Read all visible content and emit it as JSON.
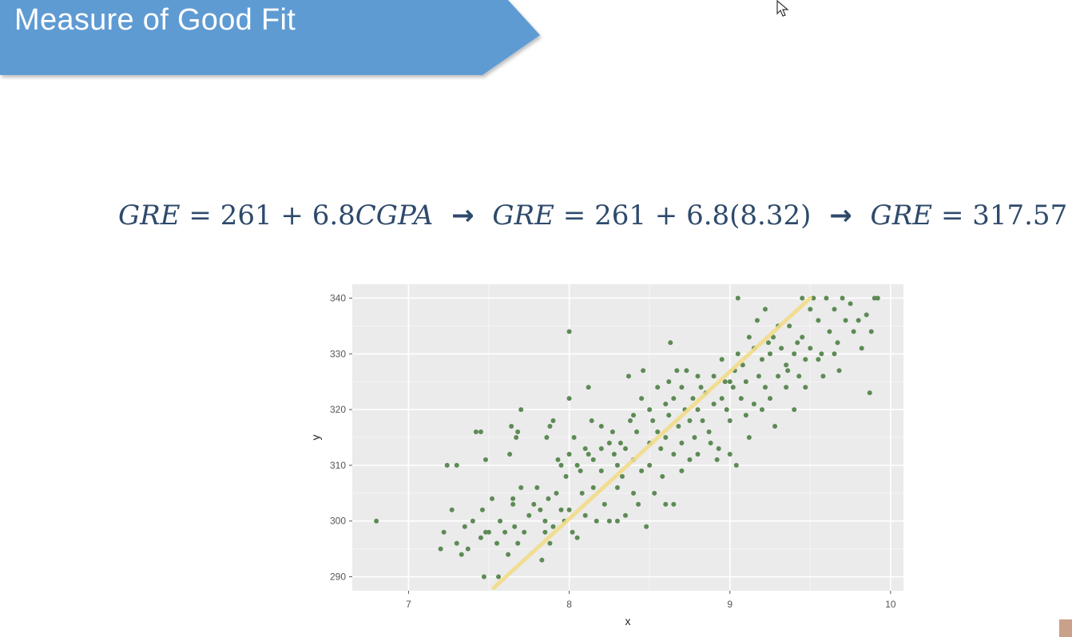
{
  "slide": {
    "title": "Measure of Good Fit",
    "banner_color": "#5f9bd3"
  },
  "equation": {
    "part1_lhs": "GRE",
    "part1_rhs_a": "= 261 + 6.8",
    "part1_rhs_var": "CGPA",
    "arrow": "→",
    "part2_lhs": "GRE",
    "part2_rhs": "= 261 + 6.8(8.32)",
    "part3_lhs": "GRE",
    "part3_rhs": "= 317.57"
  },
  "chart_data": {
    "type": "scatter",
    "xlabel": "x",
    "ylabel": "y",
    "xlim": [
      6.65,
      10.08
    ],
    "ylim": [
      287.5,
      342.5
    ],
    "x_ticks": [
      7,
      8,
      9,
      10
    ],
    "y_ticks": [
      290,
      300,
      310,
      320,
      330,
      340
    ],
    "grid": true,
    "point_color": "#5d8a55",
    "fit_line": {
      "color": "#f2dc8a",
      "x": [
        7.53,
        9.5
      ],
      "y": [
        288,
        340
      ]
    },
    "points": [
      [
        6.8,
        300
      ],
      [
        7.2,
        295
      ],
      [
        7.22,
        298
      ],
      [
        7.24,
        310
      ],
      [
        7.27,
        302
      ],
      [
        7.3,
        296
      ],
      [
        7.3,
        310
      ],
      [
        7.33,
        294
      ],
      [
        7.35,
        299
      ],
      [
        7.37,
        295
      ],
      [
        7.4,
        300
      ],
      [
        7.42,
        316
      ],
      [
        7.45,
        316
      ],
      [
        7.45,
        297
      ],
      [
        7.46,
        302
      ],
      [
        7.48,
        298
      ],
      [
        7.48,
        311
      ],
      [
        7.47,
        290
      ],
      [
        7.5,
        298
      ],
      [
        7.52,
        304
      ],
      [
        7.55,
        296
      ],
      [
        7.56,
        290
      ],
      [
        7.57,
        300
      ],
      [
        7.6,
        298
      ],
      [
        7.62,
        294
      ],
      [
        7.63,
        312
      ],
      [
        7.64,
        317
      ],
      [
        7.65,
        304
      ],
      [
        7.65,
        303
      ],
      [
        7.66,
        299
      ],
      [
        7.67,
        315
      ],
      [
        7.68,
        316
      ],
      [
        7.68,
        296
      ],
      [
        7.7,
        320
      ],
      [
        7.7,
        306
      ],
      [
        7.72,
        298
      ],
      [
        7.75,
        301
      ],
      [
        7.78,
        303
      ],
      [
        7.8,
        306
      ],
      [
        7.82,
        302
      ],
      [
        7.83,
        293
      ],
      [
        7.85,
        300
      ],
      [
        7.85,
        298
      ],
      [
        7.86,
        315
      ],
      [
        7.87,
        304
      ],
      [
        7.88,
        317
      ],
      [
        7.88,
        296
      ],
      [
        7.9,
        318
      ],
      [
        7.9,
        299
      ],
      [
        7.92,
        305
      ],
      [
        7.93,
        311
      ],
      [
        7.95,
        310
      ],
      [
        7.95,
        302
      ],
      [
        7.97,
        300
      ],
      [
        7.98,
        308
      ],
      [
        8.0,
        322
      ],
      [
        8.0,
        312
      ],
      [
        8.0,
        302
      ],
      [
        8.0,
        334
      ],
      [
        8.02,
        298
      ],
      [
        8.03,
        315
      ],
      [
        8.05,
        310
      ],
      [
        8.05,
        297
      ],
      [
        8.07,
        309
      ],
      [
        8.08,
        305
      ],
      [
        8.1,
        313
      ],
      [
        8.1,
        301
      ],
      [
        8.12,
        312
      ],
      [
        8.12,
        324
      ],
      [
        8.14,
        318
      ],
      [
        8.15,
        311
      ],
      [
        8.15,
        306
      ],
      [
        8.17,
        300
      ],
      [
        8.2,
        317
      ],
      [
        8.2,
        313
      ],
      [
        8.2,
        309
      ],
      [
        8.22,
        303
      ],
      [
        8.25,
        314
      ],
      [
        8.25,
        300
      ],
      [
        8.27,
        316
      ],
      [
        8.28,
        312
      ],
      [
        8.3,
        310
      ],
      [
        8.3,
        306
      ],
      [
        8.3,
        300
      ],
      [
        8.32,
        314
      ],
      [
        8.33,
        308
      ],
      [
        8.35,
        313
      ],
      [
        8.35,
        301
      ],
      [
        8.37,
        326
      ],
      [
        8.38,
        318
      ],
      [
        8.4,
        319
      ],
      [
        8.4,
        311
      ],
      [
        8.4,
        305
      ],
      [
        8.42,
        316
      ],
      [
        8.43,
        303
      ],
      [
        8.45,
        322
      ],
      [
        8.45,
        309
      ],
      [
        8.46,
        327
      ],
      [
        8.48,
        299
      ],
      [
        8.5,
        320
      ],
      [
        8.5,
        314
      ],
      [
        8.5,
        310
      ],
      [
        8.52,
        318
      ],
      [
        8.53,
        305
      ],
      [
        8.55,
        324
      ],
      [
        8.55,
        316
      ],
      [
        8.57,
        313
      ],
      [
        8.58,
        308
      ],
      [
        8.6,
        321
      ],
      [
        8.6,
        315
      ],
      [
        8.6,
        303
      ],
      [
        8.62,
        325
      ],
      [
        8.62,
        319
      ],
      [
        8.63,
        332
      ],
      [
        8.65,
        322
      ],
      [
        8.65,
        312
      ],
      [
        8.65,
        303
      ],
      [
        8.67,
        327
      ],
      [
        8.68,
        317
      ],
      [
        8.7,
        324
      ],
      [
        8.7,
        314
      ],
      [
        8.7,
        309
      ],
      [
        8.72,
        320
      ],
      [
        8.73,
        327
      ],
      [
        8.75,
        318
      ],
      [
        8.75,
        311
      ],
      [
        8.77,
        322
      ],
      [
        8.78,
        315
      ],
      [
        8.8,
        326
      ],
      [
        8.8,
        320
      ],
      [
        8.8,
        312
      ],
      [
        8.82,
        324
      ],
      [
        8.83,
        318
      ],
      [
        8.85,
        323
      ],
      [
        8.87,
        316
      ],
      [
        8.88,
        314
      ],
      [
        8.9,
        326
      ],
      [
        8.9,
        321
      ],
      [
        8.92,
        311
      ],
      [
        8.93,
        313
      ],
      [
        8.95,
        329
      ],
      [
        8.95,
        322
      ],
      [
        8.97,
        325
      ],
      [
        8.98,
        320
      ],
      [
        9.0,
        325
      ],
      [
        9.0,
        318
      ],
      [
        9.0,
        312
      ],
      [
        9.02,
        324
      ],
      [
        9.03,
        327
      ],
      [
        9.04,
        310
      ],
      [
        9.05,
        340
      ],
      [
        9.05,
        330
      ],
      [
        9.07,
        322
      ],
      [
        9.08,
        328
      ],
      [
        9.1,
        325
      ],
      [
        9.1,
        319
      ],
      [
        9.12,
        333
      ],
      [
        9.12,
        315
      ],
      [
        9.15,
        331
      ],
      [
        9.15,
        321
      ],
      [
        9.17,
        336
      ],
      [
        9.18,
        326
      ],
      [
        9.2,
        329
      ],
      [
        9.2,
        320
      ],
      [
        9.22,
        338
      ],
      [
        9.22,
        324
      ],
      [
        9.25,
        330
      ],
      [
        9.25,
        322
      ],
      [
        9.27,
        333
      ],
      [
        9.28,
        317
      ],
      [
        9.3,
        335
      ],
      [
        9.3,
        326
      ],
      [
        9.32,
        331
      ],
      [
        9.35,
        328
      ],
      [
        9.35,
        324
      ],
      [
        9.37,
        335
      ],
      [
        9.4,
        330
      ],
      [
        9.4,
        320
      ],
      [
        9.42,
        332
      ],
      [
        9.43,
        326
      ],
      [
        9.45,
        340
      ],
      [
        9.45,
        333
      ],
      [
        9.47,
        329
      ],
      [
        9.5,
        338
      ],
      [
        9.5,
        331
      ],
      [
        9.52,
        340
      ],
      [
        9.55,
        336
      ],
      [
        9.57,
        330
      ],
      [
        9.58,
        326
      ],
      [
        9.6,
        340
      ],
      [
        9.62,
        334
      ],
      [
        9.65,
        338
      ],
      [
        9.67,
        332
      ],
      [
        9.68,
        327
      ],
      [
        9.7,
        340
      ],
      [
        9.72,
        336
      ],
      [
        9.75,
        339
      ],
      [
        9.77,
        334
      ],
      [
        9.8,
        336
      ],
      [
        9.82,
        331
      ],
      [
        9.85,
        337
      ],
      [
        9.87,
        323
      ],
      [
        9.88,
        334
      ],
      [
        9.9,
        340
      ],
      [
        9.92,
        340
      ],
      [
        9.65,
        330
      ],
      [
        9.55,
        329
      ],
      [
        9.47,
        324
      ],
      [
        9.36,
        327
      ],
      [
        9.24,
        332
      ]
    ]
  }
}
